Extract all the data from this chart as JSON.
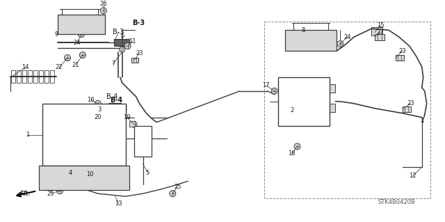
{
  "background_color": "#ffffff",
  "line_color": "#3a3a3a",
  "text_color": "#1a1a1a",
  "gray_fill": "#b0b0b0",
  "light_gray": "#d8d8d8",
  "dark_gray": "#606060",
  "figsize": [
    6.4,
    3.19
  ],
  "dpi": 100,
  "diagram_id": "STK4B0420B",
  "scale": 1.0
}
